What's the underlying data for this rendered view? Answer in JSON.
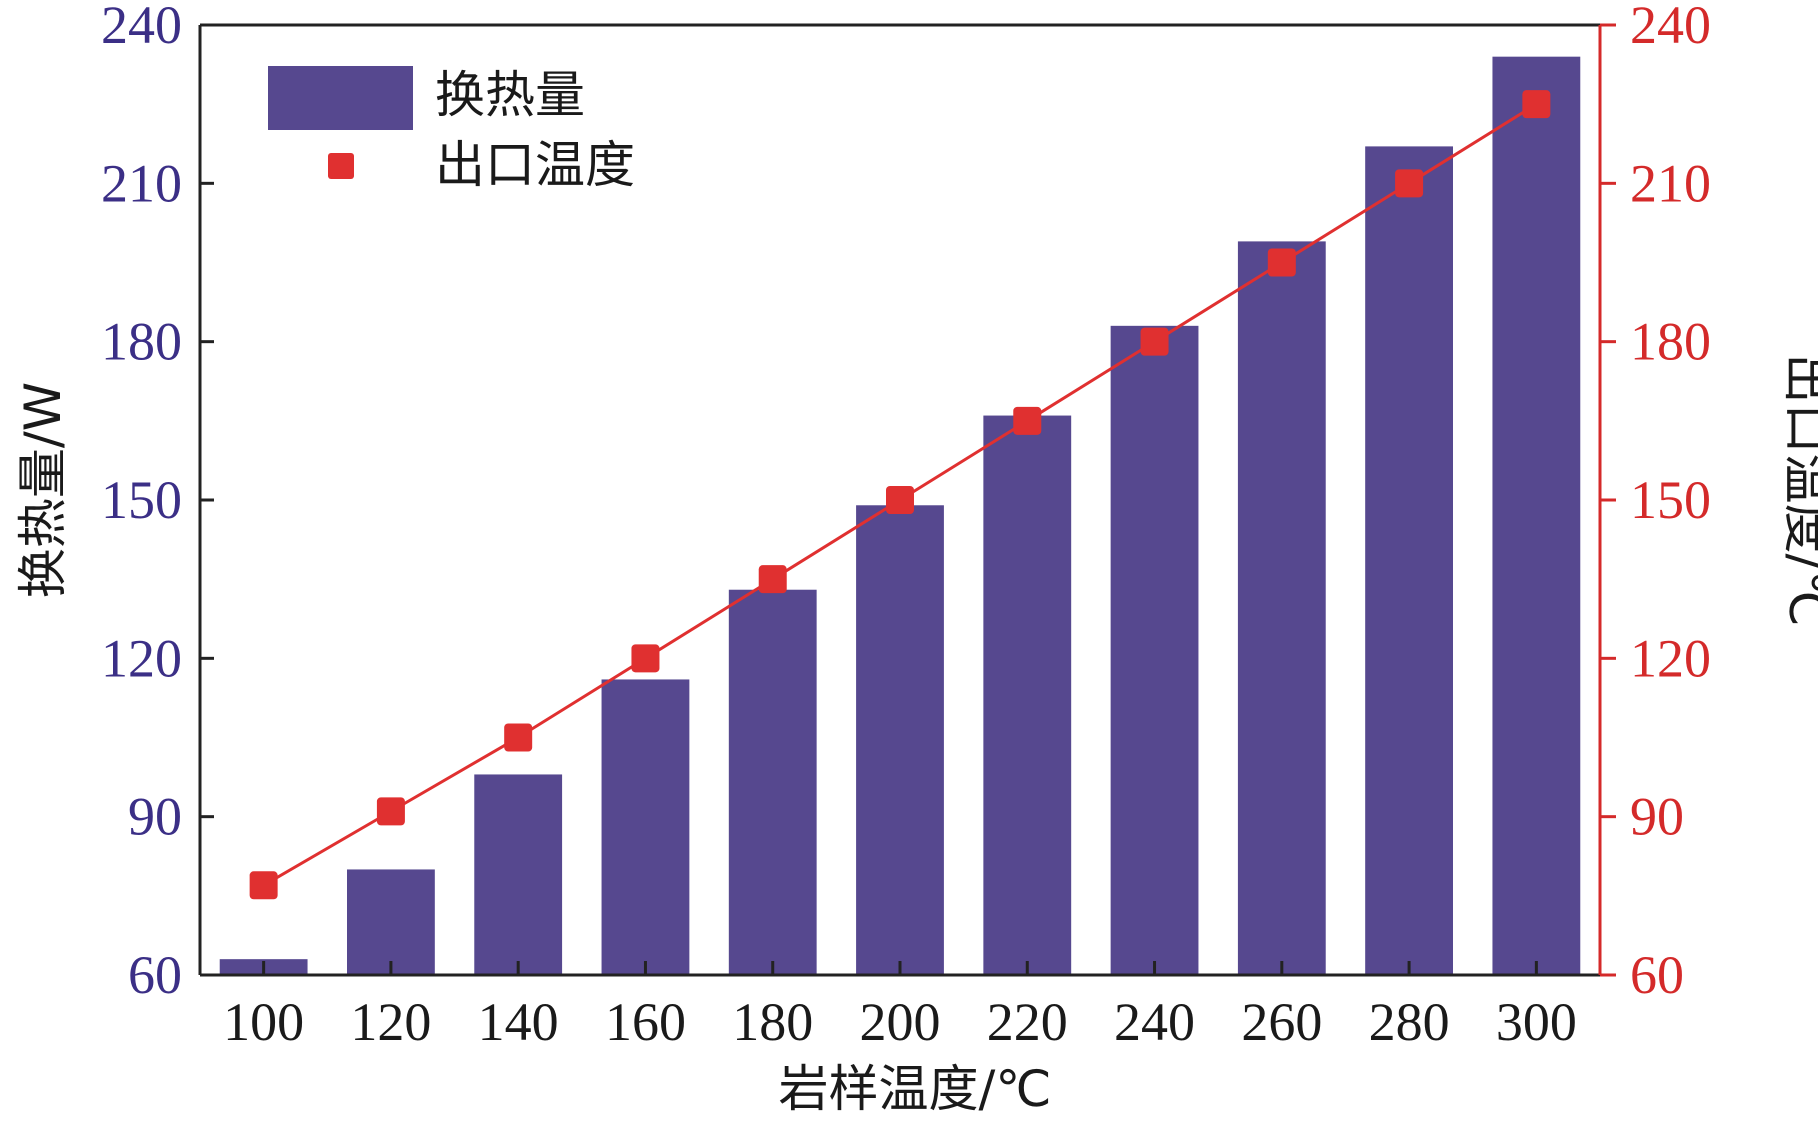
{
  "chart_data": {
    "type": "bar",
    "categories": [
      "100",
      "120",
      "140",
      "160",
      "180",
      "200",
      "220",
      "240",
      "260",
      "280",
      "300"
    ],
    "xlabel": "岩样温度/℃",
    "series": [
      {
        "name": "换热量",
        "type": "bar",
        "axis": "left",
        "values": [
          63,
          80,
          98,
          116,
          133,
          149,
          166,
          183,
          199,
          217,
          234
        ]
      },
      {
        "name": "出口温度",
        "type": "line",
        "axis": "right",
        "values": [
          77,
          91,
          105,
          120,
          135,
          150,
          165,
          180,
          195,
          210,
          225
        ]
      }
    ],
    "y_left": {
      "label": "换热量/W",
      "ylim": [
        60,
        240
      ],
      "ticks": [
        "60",
        "90",
        "120",
        "150",
        "180",
        "210",
        "240"
      ]
    },
    "y_right": {
      "label": "出口温度/℃",
      "ylim": [
        60,
        240
      ],
      "ticks": [
        "60",
        "90",
        "120",
        "150",
        "180",
        "210",
        "240"
      ]
    },
    "legend_position": "top-left",
    "grid": false,
    "colors": {
      "bar": "#56488f",
      "line": "#e03030",
      "left_axis": "#3b2f86",
      "right_axis": "#d42a2a"
    }
  }
}
